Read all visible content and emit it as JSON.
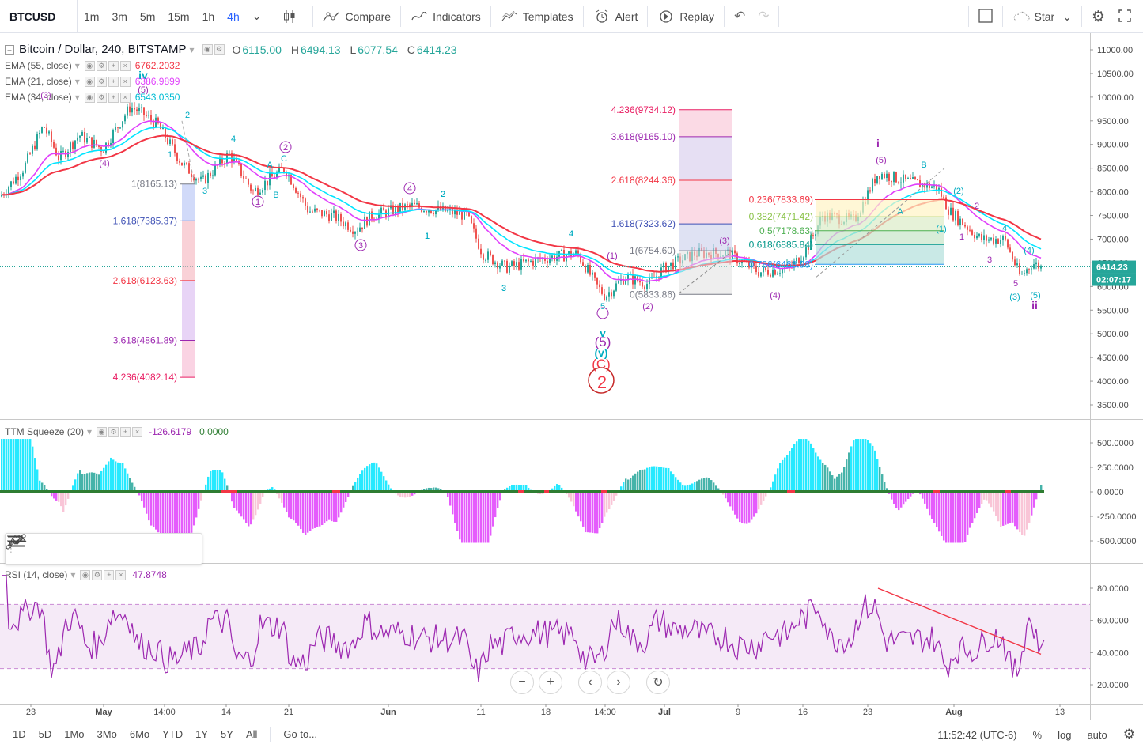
{
  "toolbar": {
    "symbol": "BTCUSD",
    "intervals": [
      "1m",
      "3m",
      "5m",
      "15m",
      "1h",
      "4h"
    ],
    "active_interval": "4h",
    "compare": "Compare",
    "indicators": "Indicators",
    "templates": "Templates",
    "alert": "Alert",
    "replay": "Replay",
    "layout_name": "Star"
  },
  "legend": {
    "title": "Bitcoin / Dollar, 240, BITSTAMP",
    "o_label": "O",
    "o": "6115.00",
    "h_label": "H",
    "h": "6494.13",
    "l_label": "L",
    "l": "6077.54",
    "c_label": "C",
    "c": "6414.23",
    "ema55_label": "EMA (55, close)",
    "ema55": "6762.2032",
    "ema55_color": "#f23645",
    "ema21_label": "EMA (21, close)",
    "ema21": "6386.9899",
    "ema21_color": "#e040fb",
    "ema34_label": "EMA (34, close)",
    "ema34": "6543.0350",
    "ema34_color": "#00e5ff"
  },
  "price_axis": {
    "ticks": [
      "11000.00",
      "10500.00",
      "10000.00",
      "9500.00",
      "9000.00",
      "8500.00",
      "8000.00",
      "7500.00",
      "7000.00",
      "6500.00",
      "6000.00",
      "5500.00",
      "5000.00",
      "4500.00",
      "4000.00",
      "3500.00"
    ],
    "last_price": "6414.23",
    "countdown": "02:07:17"
  },
  "fib_left": [
    {
      "label": "1(8165.13)",
      "color": "#787b86"
    },
    {
      "label": "1.618(7385.37)",
      "color": "#3f51b5"
    },
    {
      "label": "2.618(6123.63)",
      "color": "#f23645"
    },
    {
      "label": "3.618(4861.89)",
      "color": "#9c27b0"
    },
    {
      "label": "4.236(4082.14)",
      "color": "#e91e63"
    }
  ],
  "fib_mid": [
    {
      "label": "4.236(9734.12)",
      "color": "#e91e63"
    },
    {
      "label": "3.618(9165.10)",
      "color": "#9c27b0"
    },
    {
      "label": "2.618(8244.36)",
      "color": "#f23645"
    },
    {
      "label": "1.618(7323.62)",
      "color": "#3f51b5"
    },
    {
      "label": "1(6754.60)",
      "color": "#787b86"
    },
    {
      "label": "0(5833.86)",
      "color": "#787b86"
    }
  ],
  "fib_right": [
    {
      "label": "0.236(7833.69)",
      "color": "#f23645"
    },
    {
      "label": "0.382(7471.42)",
      "color": "#8bc34a"
    },
    {
      "label": "0.5(7178.63)",
      "color": "#4caf50"
    },
    {
      "label": "0.618(6885.84)",
      "color": "#009688"
    },
    {
      "label": "0.786(6468.98)",
      "color": "#2196f3"
    }
  ],
  "wave_labels": [
    "iv",
    "(5)",
    "(3)",
    "2",
    "1",
    "(4)",
    "3",
    "4",
    "2",
    "1",
    "A",
    "C",
    "B",
    "3",
    "4",
    "2",
    "1",
    "3",
    "4",
    "(1)",
    "5",
    "v",
    "(5)",
    "(v)",
    "(C)",
    "2",
    "(2)",
    "(3)",
    "(4)",
    "i",
    "(5)",
    "B",
    "A",
    "(2)",
    "(1)",
    "2",
    "1",
    "3",
    "4",
    "5",
    "(4)",
    "(3)",
    "(5)",
    "ii"
  ],
  "squeeze": {
    "label": "TTM Squeeze (20)",
    "v1": "-126.6179",
    "v1_color": "#9c27b0",
    "v2": "0.0000",
    "v2_color": "#4caf50",
    "ticks": [
      "500.0000",
      "250.0000",
      "0.0000",
      "-250.0000",
      "-500.0000"
    ]
  },
  "rsi": {
    "label": "RSI (14, close)",
    "value": "47.8748",
    "color": "#9c27b0",
    "ticks": [
      "80.0000",
      "60.0000",
      "40.0000",
      "20.0000"
    ],
    "last_value": 47.87,
    "band_upper": 70,
    "band_lower": 30
  },
  "time_axis": [
    "23",
    "May",
    "14:00",
    "14",
    "21",
    "Jun",
    "11",
    "18",
    "14:00",
    "Jul",
    "9",
    "16",
    "23",
    "Aug",
    "13"
  ],
  "bottom": {
    "ranges": [
      "1D",
      "5D",
      "1Mo",
      "3Mo",
      "6Mo",
      "YTD",
      "1Y",
      "5Y",
      "All"
    ],
    "goto": "Go to...",
    "clock": "11:52:42 (UTC-6)",
    "percent": "%",
    "log": "log",
    "auto": "auto"
  }
}
